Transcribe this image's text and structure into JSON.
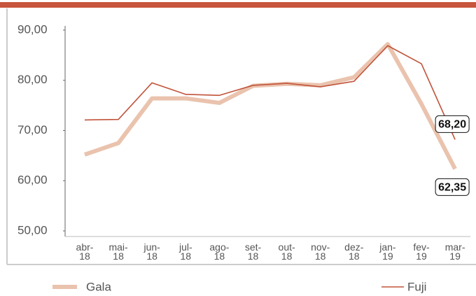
{
  "chart_data": {
    "type": "line",
    "categories": [
      "abr-18",
      "mai-18",
      "jun-18",
      "jul-18",
      "ago-18",
      "set-18",
      "out-18",
      "nov-18",
      "dez-18",
      "jan-19",
      "fev-19",
      "mar-19"
    ],
    "series": [
      {
        "name": "Gala",
        "color": "#eac3ae",
        "values": [
          65.2,
          67.5,
          76.4,
          76.4,
          75.5,
          78.9,
          79.3,
          79.0,
          80.6,
          87.2,
          75.3,
          62.35
        ],
        "value_labels": [
          null,
          null,
          null,
          null,
          null,
          null,
          null,
          null,
          null,
          null,
          null,
          "62,35"
        ]
      },
      {
        "name": "Fuji",
        "color": "#c0533a",
        "values": [
          72.1,
          72.2,
          79.5,
          77.2,
          77.0,
          79.0,
          79.4,
          78.7,
          79.8,
          86.9,
          83.3,
          68.2
        ],
        "value_labels": [
          null,
          null,
          null,
          null,
          null,
          null,
          null,
          null,
          null,
          null,
          null,
          "68,20"
        ]
      }
    ],
    "ylim": [
      50,
      90
    ],
    "yticks": [
      {
        "value": 50,
        "label": "50,00"
      },
      {
        "value": 60,
        "label": "60,00"
      },
      {
        "value": 70,
        "label": "70,00"
      },
      {
        "value": 80,
        "label": "80,00"
      },
      {
        "value": 90,
        "label": "90,00"
      }
    ],
    "grid": false
  }
}
